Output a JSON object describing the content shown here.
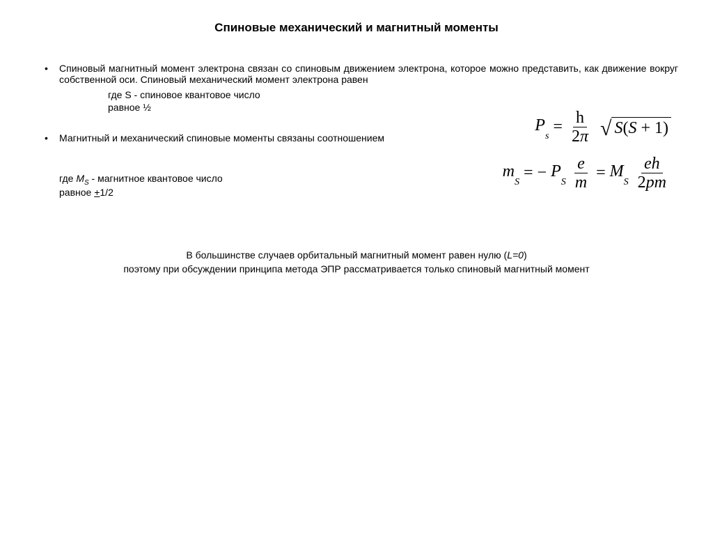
{
  "title": "Спиновые механический и магнитный моменты",
  "bullet1": "Спиновый магнитный момент электрона связан со спиновым движением электрона, которое можно представить, как движение вокруг собственной оси. Спиновый механический момент электрона равен",
  "indent1a": "где S - спиновое квантовое число",
  "indent1b": "равное ½",
  "bullet2": "Магнитный  и механический  спиновые моменты  связаны соотношением",
  "note_ms_1_pre": "где ",
  "note_ms_var": "M",
  "note_ms_sub": "S",
  "note_ms_1_post": " - магнитное квантовое число",
  "note_ms_2_pre": "равное ",
  "note_ms_2_val": "+",
  "note_ms_2_post": "1/2",
  "bottom_line1_pre": "В большинстве случаев орбитальный  магнитный момент  равен нулю (",
  "bottom_line1_var": "L=0",
  "bottom_line1_post": ")",
  "bottom_line2": "поэтому при обсуждении принципа метода ЭПР рассматривается только спиновый магнитный  момент",
  "formula1": {
    "lhs_var": "P",
    "lhs_sub": "s",
    "frac_num": "h",
    "frac_den_a": "2",
    "frac_den_b": "π",
    "rad_a": "S",
    "rad_b": "(",
    "rad_c": "S",
    "rad_d": " + 1)"
  },
  "formula2": {
    "lhs_var": "m",
    "lhs_sub": "S",
    "eq": " = ",
    "minus": "−",
    "mid_var": "P",
    "mid_sub": "S",
    "frac1_num": "e",
    "frac1_den": "m",
    "rhs_var": "M",
    "rhs_sub": "S",
    "frac2_num": "eh",
    "frac2_den_a": "2",
    "frac2_den_b": "pm"
  },
  "style": {
    "body_fontsize": 14,
    "title_fontsize": 17,
    "formula_fontsize": 24,
    "text_color": "#000000",
    "background_color": "#ffffff"
  }
}
